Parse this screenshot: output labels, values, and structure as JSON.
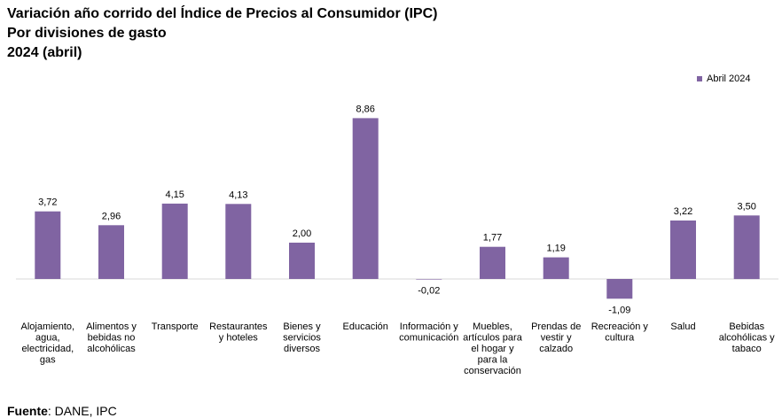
{
  "title": {
    "line1": "Variación año corrido del Índice de Precios al Consumidor (IPC)",
    "line2": "Por divisiones de gasto",
    "line3": "2024 (abril)"
  },
  "source": {
    "label": "Fuente",
    "text": ": DANE, IPC"
  },
  "chart_data": {
    "type": "bar",
    "categories": [
      [
        "Alojamiento,",
        "agua,",
        "electricidad,",
        "gas"
      ],
      [
        "Alimentos y",
        "bebidas no",
        "alcohólicas"
      ],
      [
        "Transporte"
      ],
      [
        "Restaurantes",
        "y hoteles"
      ],
      [
        "Bienes y",
        "servicios",
        "diversos"
      ],
      [
        "Educación"
      ],
      [
        "Información y",
        "comunicación"
      ],
      [
        "Muebles,",
        "artículos para",
        "el hogar y",
        "para la",
        "conservación"
      ],
      [
        "Prendas de",
        "vestir y",
        "calzado"
      ],
      [
        "Recreación y",
        "cultura"
      ],
      [
        "Salud"
      ],
      [
        "Bebidas",
        "alcohólicas y",
        "tabaco"
      ]
    ],
    "series": [
      {
        "name": "Abril 2024",
        "values": [
          3.72,
          2.96,
          4.15,
          4.13,
          2.0,
          8.86,
          -0.02,
          1.77,
          1.19,
          -1.09,
          3.22,
          3.5
        ],
        "labels": [
          "3,72",
          "2,96",
          "4,15",
          "4,13",
          "2,00",
          "8,86",
          "-0,02",
          "1,77",
          "1,19",
          "-1,09",
          "3,22",
          "3,50"
        ]
      }
    ],
    "bar_color": "#8064a2",
    "legend_position": "top-right",
    "grid": false
  }
}
